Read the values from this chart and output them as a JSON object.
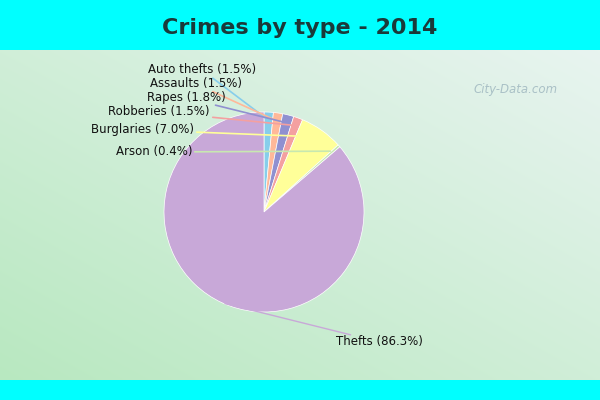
{
  "title": "Crimes by type - 2014",
  "labels": [
    "Auto thefts",
    "Assaults",
    "Rapes",
    "Robberies",
    "Burglaries",
    "Arson",
    "Thefts"
  ],
  "label_texts": [
    "Auto thefts (1.5%)",
    "Assaults (1.5%)",
    "Rapes (1.8%)",
    "Robberies (1.5%)",
    "Burglaries (7.0%)",
    "Arson (0.4%)",
    "Thefts (86.3%)"
  ],
  "percentages": [
    1.5,
    1.5,
    1.8,
    1.5,
    7.0,
    0.4,
    86.3
  ],
  "pie_colors": [
    "#87CEEB",
    "#FFB899",
    "#9090D0",
    "#F4A0A0",
    "#FFFF99",
    "#C8E8B0",
    "#C8A8D8"
  ],
  "line_colors": [
    "#87CEEB",
    "#FFB899",
    "#9090D0",
    "#F4A0A0",
    "#FFFF99",
    "#C8E8B0",
    "#C8A8D8"
  ],
  "background_color": "#00FFFF",
  "title_color": "#1a3a3a",
  "title_fontsize": 16,
  "label_fontsize": 8.5,
  "watermark": "City-Data.com"
}
